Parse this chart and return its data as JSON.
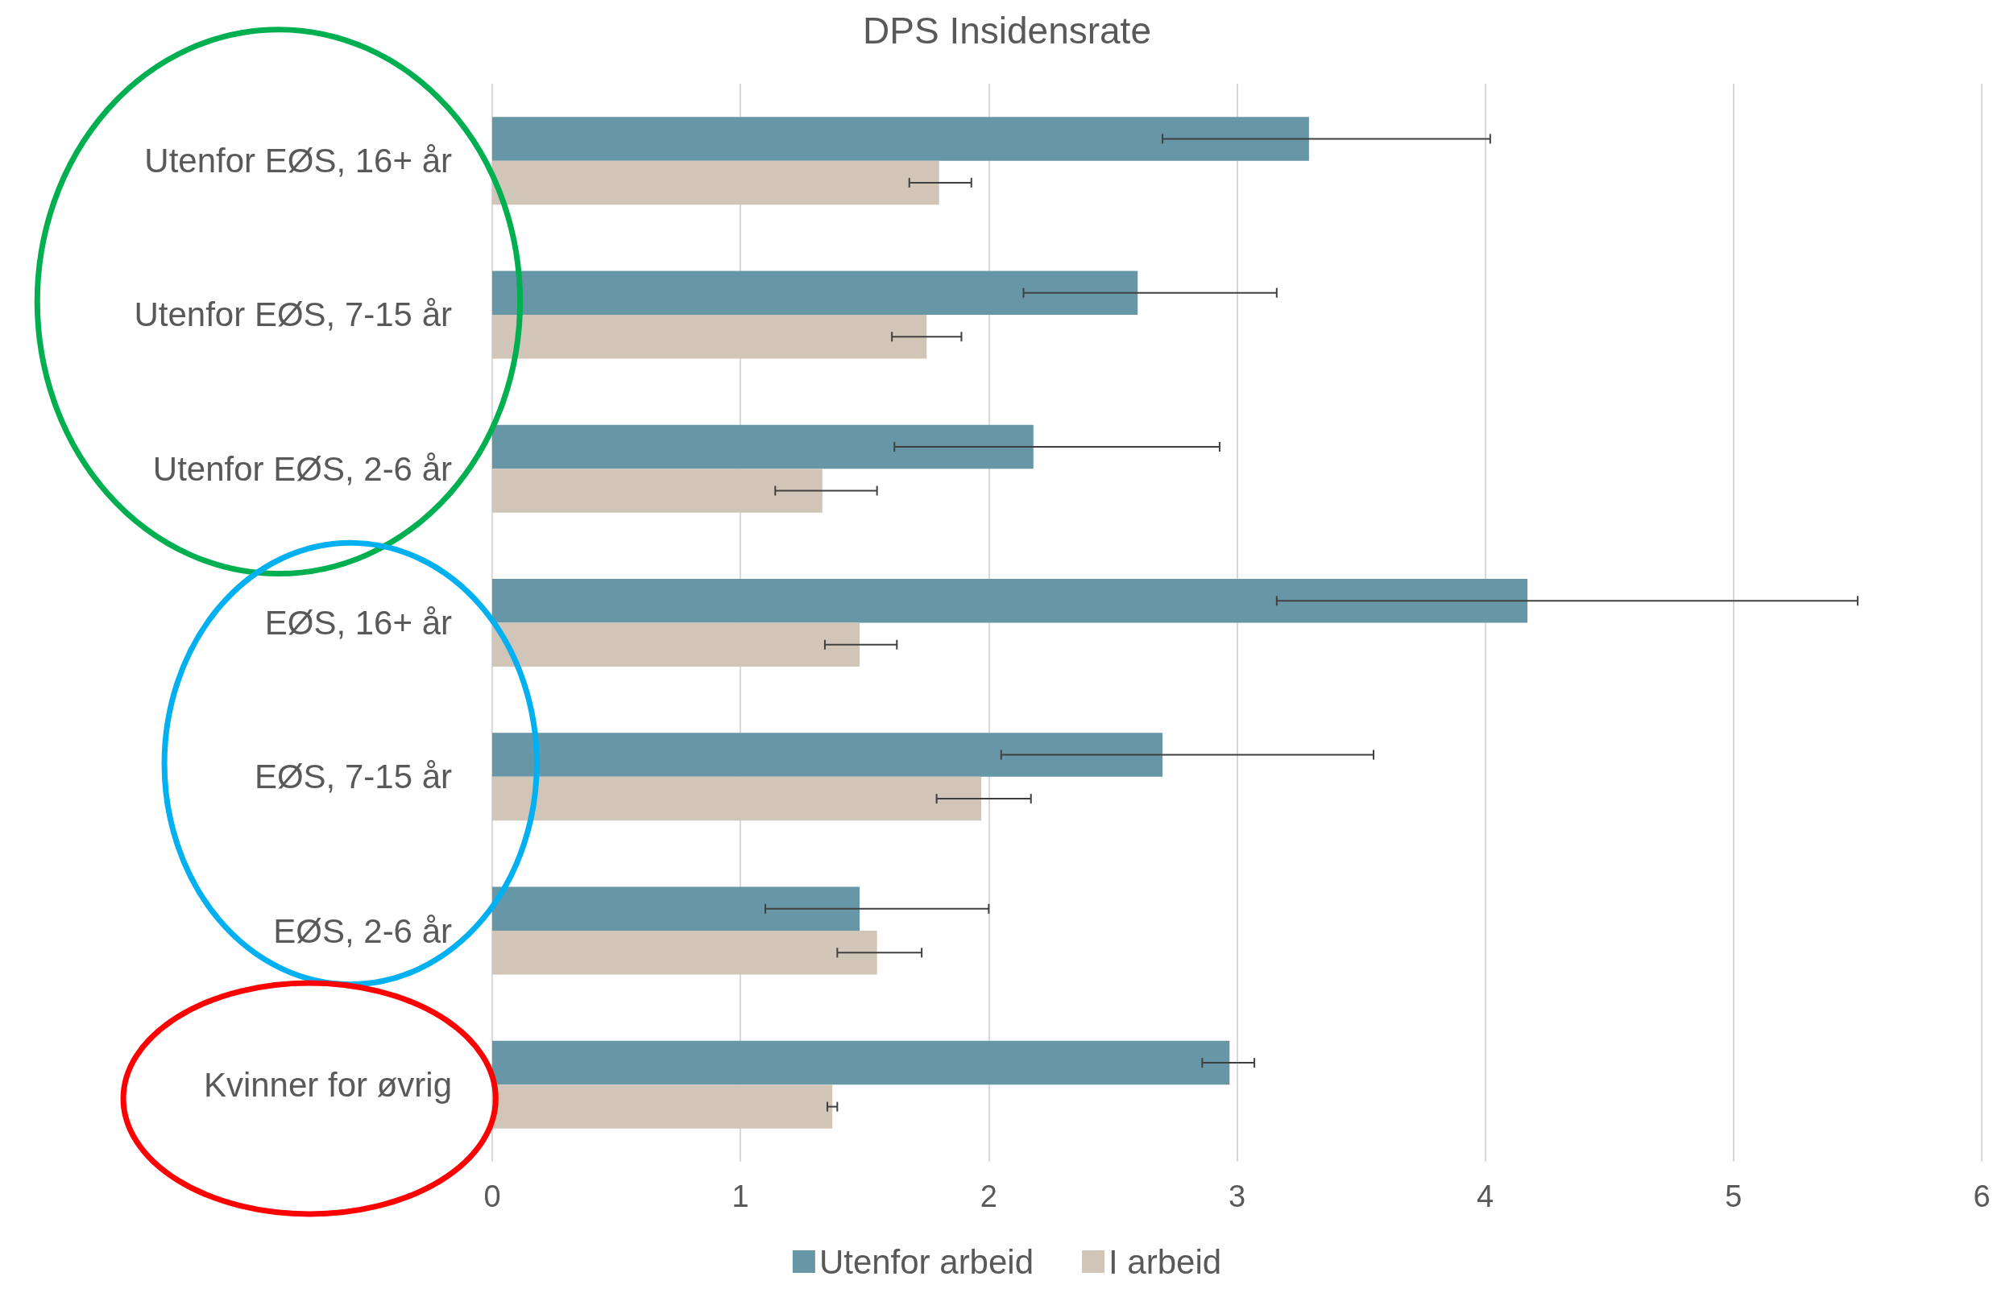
{
  "chart_data": {
    "type": "bar",
    "orientation": "horizontal",
    "title": "DPS Insidensrate",
    "categories": [
      "Utenfor EØS, 16+ år",
      "Utenfor EØS, 7-15 år",
      "Utenfor EØS, 2-6 år",
      "EØS, 16+ år",
      "EØS, 7-15 år",
      "EØS, 2-6 år",
      "Kvinner for øvrig"
    ],
    "series": [
      {
        "name": "Utenfor arbeid",
        "color": "#6797a7",
        "values": [
          3.29,
          2.6,
          2.18,
          4.17,
          2.7,
          1.48,
          2.97
        ],
        "errors": [
          [
            2.7,
            4.02
          ],
          [
            2.14,
            3.16
          ],
          [
            1.62,
            2.93
          ],
          [
            3.16,
            5.5
          ],
          [
            2.05,
            3.55
          ],
          [
            1.1,
            2.0
          ],
          [
            2.86,
            3.07
          ]
        ]
      },
      {
        "name": "I arbeid",
        "color": "#d1c5b8",
        "values": [
          1.8,
          1.75,
          1.33,
          1.48,
          1.97,
          1.55,
          1.37
        ],
        "errors": [
          [
            1.68,
            1.93
          ],
          [
            1.61,
            1.89
          ],
          [
            1.14,
            1.55
          ],
          [
            1.34,
            1.63
          ],
          [
            1.79,
            2.17
          ],
          [
            1.39,
            1.73
          ],
          [
            1.35,
            1.39
          ]
        ]
      }
    ],
    "xlim": [
      0,
      6
    ],
    "xticks": [
      0,
      1,
      2,
      3,
      4,
      5,
      6
    ],
    "grid": "x",
    "legend": "bottom"
  }
}
